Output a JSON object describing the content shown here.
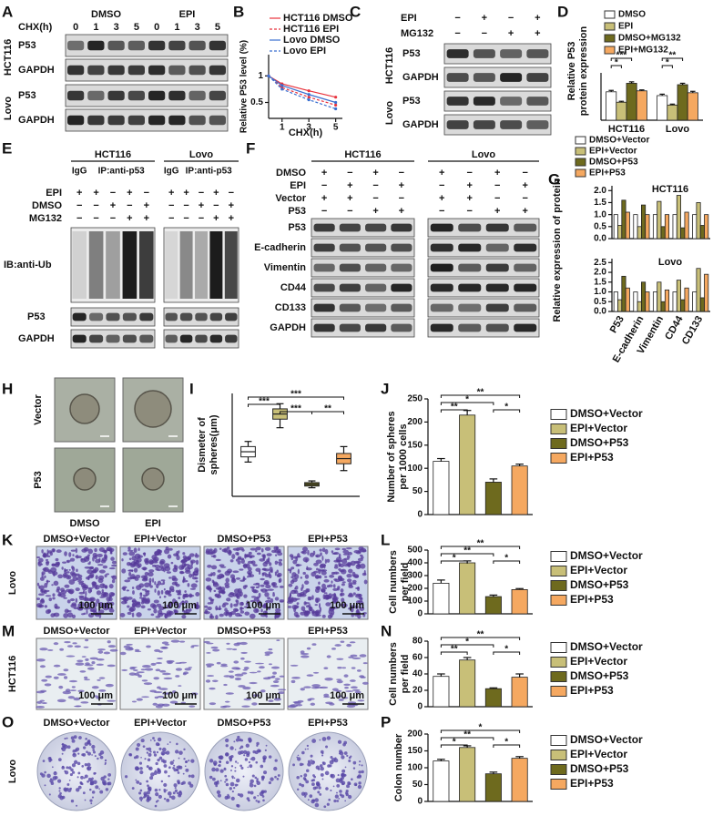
{
  "panel_labels": [
    "A",
    "B",
    "C",
    "D",
    "E",
    "F",
    "G",
    "H",
    "I",
    "J",
    "K",
    "L",
    "M",
    "N",
    "O",
    "P"
  ],
  "blot_A": {
    "time_label": "CHX(h)",
    "treatments": [
      "DMSO",
      "EPI"
    ],
    "times": [
      "0",
      "1",
      "3",
      "5",
      "0",
      "1",
      "3",
      "5"
    ],
    "rows": [
      "P53",
      "GAPDH",
      "P53",
      "GAPDH"
    ],
    "cell_lines": [
      "HCT116",
      "Lovo"
    ]
  },
  "blot_C": {
    "conditions": [
      {
        "label": "EPI",
        "signs": [
          "−",
          "+",
          "−",
          "+"
        ]
      },
      {
        "label": "MG132",
        "signs": [
          "−",
          "−",
          "+",
          "+"
        ]
      }
    ],
    "rows": [
      "P53",
      "GAPDH",
      "P53",
      "GAPDH"
    ],
    "cell_lines": [
      "HCT116",
      "Lovo"
    ]
  },
  "blot_E": {
    "groups": [
      {
        "name": "HCT116",
        "lanes": [
          "IgG",
          "IP:anti-p53"
        ]
      },
      {
        "name": "Lovo",
        "lanes": [
          "IgG",
          "IP:anti-p53"
        ]
      }
    ],
    "conditions": [
      {
        "label": "EPI",
        "signs": [
          "+",
          "+",
          "−",
          "+",
          "−",
          "+",
          "+",
          "−",
          "+",
          "−"
        ]
      },
      {
        "label": "DMSO",
        "signs": [
          "−",
          "−",
          "+",
          "−",
          "+",
          "−",
          "−",
          "+",
          "−",
          "+"
        ]
      },
      {
        "label": "MG132",
        "signs": [
          "−",
          "−",
          "−",
          "+",
          "+",
          "−",
          "−",
          "−",
          "+",
          "+"
        ]
      }
    ],
    "rows": [
      "IB:anti-Ub",
      "P53",
      "GAPDH"
    ]
  },
  "blot_F": {
    "groups": [
      "HCT116",
      "Lovo"
    ],
    "conditions": [
      {
        "label": "DMSO",
        "signs": [
          "+",
          "−",
          "+",
          "−",
          "+",
          "−",
          "+",
          "−"
        ]
      },
      {
        "label": "EPI",
        "signs": [
          "−",
          "+",
          "−",
          "+",
          "−",
          "+",
          "−",
          "+"
        ]
      },
      {
        "label": "Vector",
        "signs": [
          "+",
          "+",
          "−",
          "−",
          "+",
          "+",
          "−",
          "−"
        ]
      },
      {
        "label": "P53",
        "signs": [
          "−",
          "−",
          "+",
          "+",
          "−",
          "−",
          "+",
          "+"
        ]
      }
    ],
    "rows": [
      "P53",
      "E-cadherin",
      "Vimentin",
      "CD44",
      "CD133",
      "GAPDH"
    ]
  },
  "images": {
    "H": {
      "rows": [
        "Vector",
        "P53"
      ],
      "cols": [
        "DMSO",
        "EPI"
      ]
    },
    "K": {
      "cell_line": "Lovo",
      "cols": [
        "DMSO+Vector",
        "EPI+Vector",
        "DMSO+P53",
        "EPI+P53"
      ],
      "scale": "100 μm"
    },
    "M": {
      "cell_line": "HCT116",
      "cols": [
        "DMSO+Vector",
        "EPI+Vector",
        "DMSO+P53",
        "EPI+P53"
      ],
      "scale": "100 μm"
    },
    "O": {
      "cell_line": "Lovo",
      "cols": [
        "DMSO+Vector",
        "EPI+Vector",
        "DMSO+P53",
        "EPI+P53"
      ]
    }
  },
  "chart_data": [
    {
      "type": "line",
      "ylabel": "Relative P53 level (%)",
      "xlabel": "CHX(h)",
      "x": [
        0,
        1,
        3,
        5
      ],
      "xlim": [
        0,
        5.5
      ],
      "xticks": [
        1,
        3,
        5
      ],
      "ylim": [
        0.2,
        1.4
      ],
      "yticks": [
        0.5,
        1
      ],
      "series": [
        {
          "name": "HCT116 DMSO",
          "color": "#e8323c",
          "dashed": false,
          "values": [
            1,
            0.85,
            0.72,
            0.6
          ]
        },
        {
          "name": "HCT116 EPI",
          "color": "#e8323c",
          "dashed": true,
          "values": [
            1,
            0.78,
            0.6,
            0.45
          ]
        },
        {
          "name": "Lovo DMSO",
          "color": "#3a6fd0",
          "dashed": false,
          "values": [
            1,
            0.82,
            0.65,
            0.5
          ]
        },
        {
          "name": "Lovo EPI",
          "color": "#3a6fd0",
          "dashed": true,
          "values": [
            1,
            0.75,
            0.55,
            0.38
          ]
        }
      ]
    },
    {
      "type": "bar",
      "ylabel": [
        "Relative P53",
        "protein expression"
      ],
      "categories": [
        "HCT116",
        "Lovo"
      ],
      "ylim": [
        0,
        100
      ],
      "series": [
        {
          "name": "DMSO",
          "color": "#ffffff",
          "values": [
            60,
            52
          ],
          "errors": [
            3,
            3
          ]
        },
        {
          "name": "EPI",
          "color": "#c8bf78",
          "values": [
            38,
            32
          ],
          "errors": [
            2,
            2
          ]
        },
        {
          "name": "DMSO+MG132",
          "color": "#6e6a1e",
          "values": [
            78,
            75
          ],
          "errors": [
            3,
            3
          ]
        },
        {
          "name": "EPI+MG132",
          "color": "#f5a860",
          "values": [
            62,
            58
          ],
          "errors": [
            2,
            3
          ]
        }
      ],
      "annotations": [
        "*",
        "***",
        "**",
        "*"
      ]
    },
    {
      "type": "bar",
      "ylabel": "Relative expression of protein",
      "categories": [
        "P53",
        "E-cadherin",
        "Vimentin",
        "CD44",
        "CD133"
      ],
      "series": [
        {
          "name": "DMSO+Vector",
          "color": "#ffffff"
        },
        {
          "name": "EPI+Vector",
          "color": "#c8bf78"
        },
        {
          "name": "DMSO+P53",
          "color": "#6e6a1e"
        },
        {
          "name": "EPI+P53",
          "color": "#f5a860"
        }
      ],
      "subplots": [
        {
          "title": "HCT116",
          "ylim": [
            0,
            2.2
          ],
          "yticks": [
            {
              "value": 0,
              "label": "0.0"
            },
            0.5,
            {
              "value": 1,
              "label": "1.0"
            },
            1.5,
            {
              "value": 2,
              "label": "2.0"
            }
          ],
          "values": [
            [
              1,
              1,
              1,
              1,
              1
            ],
            [
              0.55,
              0.5,
              1.55,
              1.8,
              1.5
            ],
            [
              1.6,
              1.4,
              0.5,
              0.45,
              0.55
            ],
            [
              1.1,
              1,
              1,
              1.1,
              1
            ]
          ]
        },
        {
          "title": "Lovo",
          "ylim": [
            0,
            2.7
          ],
          "yticks": [
            {
              "value": 0,
              "label": "0.0"
            },
            0.5,
            {
              "value": 1,
              "label": "1.0"
            },
            1.5,
            {
              "value": 2,
              "label": "2.0"
            },
            2.5
          ],
          "values": [
            [
              1,
              1,
              1,
              1,
              1
            ],
            [
              0.6,
              0.5,
              1.5,
              1.6,
              2.2
            ],
            [
              1.8,
              1.5,
              0.5,
              0.6,
              0.7
            ],
            [
              1.2,
              1,
              1.1,
              1.2,
              1.9
            ]
          ]
        }
      ]
    },
    {
      "type": "box",
      "ylabel": [
        "Dismeter of",
        "spheres(μm)"
      ],
      "ylim": [
        100,
        400
      ],
      "boxes": [
        {
          "color": "#ffffff",
          "values": [
            200,
            215,
            230,
            245,
            260
          ]
        },
        {
          "color": "#c8bf78",
          "values": [
            300,
            325,
            340,
            355,
            370
          ]
        },
        {
          "color": "#6e6a1e",
          "values": [
            125,
            130,
            135,
            140,
            145
          ]
        },
        {
          "color": "#f5a860",
          "values": [
            175,
            195,
            210,
            225,
            245
          ]
        }
      ],
      "annotations": [
        "***",
        "***",
        "***",
        "**"
      ]
    },
    {
      "type": "bar",
      "ylabel": [
        "Number of spheres",
        "per 1000 cells"
      ],
      "categories": [
        "DMSO+Vector",
        "EPI+Vector",
        "DMSO+P53",
        "EPI+P53"
      ],
      "colors": [
        "#ffffff",
        "#c8bf78",
        "#6e6a1e",
        "#f5a860"
      ],
      "values": [
        115,
        215,
        70,
        105
      ],
      "errors": [
        6,
        10,
        7,
        4
      ],
      "ylim": [
        0,
        250
      ],
      "yticks": [
        0,
        50,
        100,
        150,
        200,
        250
      ],
      "annotations": [
        "**",
        "*",
        "**",
        "*"
      ]
    },
    {
      "type": "bar",
      "ylabel": [
        "Cell numbers",
        "per field"
      ],
      "categories": [
        "DMSO+Vector",
        "EPI+Vector",
        "DMSO+P53",
        "EPI+P53"
      ],
      "colors": [
        "#ffffff",
        "#c8bf78",
        "#6e6a1e",
        "#f5a860"
      ],
      "values": [
        240,
        400,
        135,
        190
      ],
      "errors": [
        25,
        15,
        12,
        8
      ],
      "ylim": [
        0,
        500
      ],
      "yticks": [
        0,
        100,
        200,
        300,
        400,
        500
      ],
      "annotations": [
        "*",
        "**",
        "**",
        "*"
      ]
    },
    {
      "type": "bar",
      "ylabel": [
        "Cell numbers",
        "per field"
      ],
      "categories": [
        "DMSO+Vector",
        "EPI+Vector",
        "DMSO+P53",
        "EPI+P53"
      ],
      "colors": [
        "#ffffff",
        "#c8bf78",
        "#6e6a1e",
        "#f5a860"
      ],
      "values": [
        37,
        57,
        22,
        36
      ],
      "errors": [
        3,
        3,
        1,
        4
      ],
      "ylim": [
        0,
        80
      ],
      "yticks": [
        0,
        20,
        40,
        60,
        80
      ],
      "annotations": [
        "**",
        "*",
        "**",
        "*"
      ]
    },
    {
      "type": "bar",
      "ylabel": [
        "Colon number"
      ],
      "categories": [
        "DMSO+Vector",
        "EPI+Vector",
        "DMSO+P53",
        "EPI+P53"
      ],
      "colors": [
        "#ffffff",
        "#c8bf78",
        "#6e6a1e",
        "#f5a860"
      ],
      "values": [
        120,
        160,
        82,
        128
      ],
      "errors": [
        5,
        5,
        5,
        5
      ],
      "ylim": [
        0,
        200
      ],
      "yticks": [
        0,
        50,
        100,
        150,
        200
      ],
      "annotations": [
        "*",
        "**",
        "*",
        "*"
      ]
    }
  ]
}
